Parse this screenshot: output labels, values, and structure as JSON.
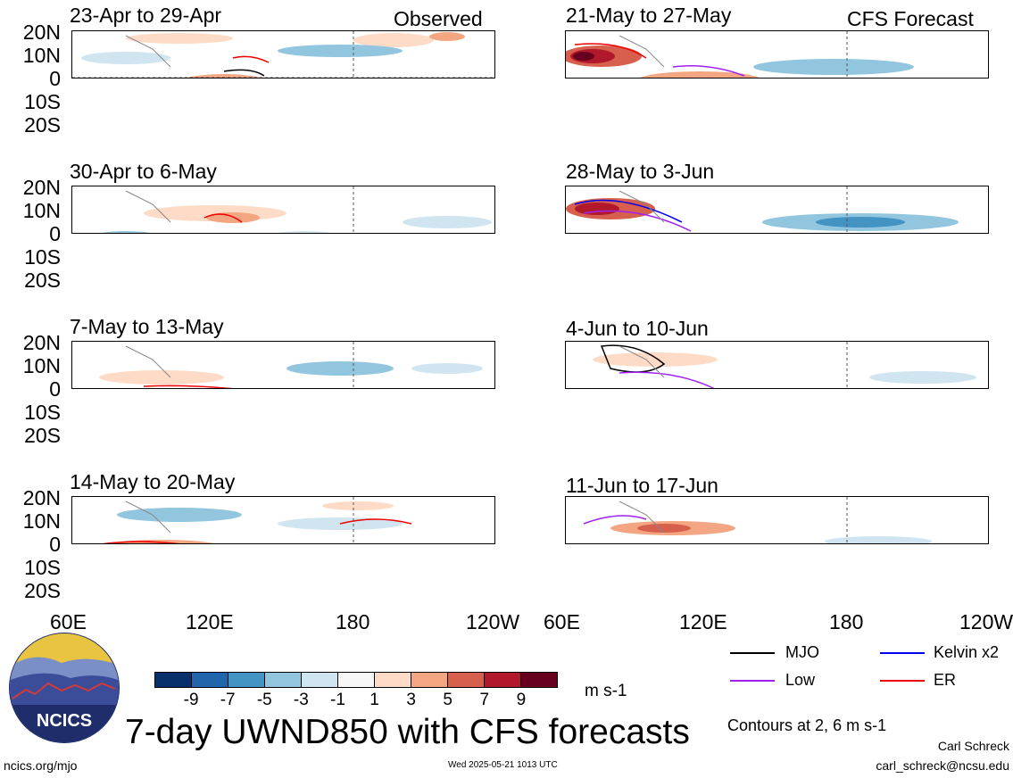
{
  "headers": {
    "observed": "Observed",
    "forecast": "CFS Forecast"
  },
  "panels": {
    "left": [
      {
        "title": "23-Apr to 29-Apr"
      },
      {
        "title": "30-Apr to 6-May"
      },
      {
        "title": "7-May to 13-May"
      },
      {
        "title": "14-May to 20-May"
      }
    ],
    "right": [
      {
        "title": "21-May to 27-May"
      },
      {
        "title": "28-May to 3-Jun"
      },
      {
        "title": "4-Jun to 10-Jun"
      },
      {
        "title": "11-Jun to 17-Jun"
      }
    ]
  },
  "lat_labels": [
    "20N",
    "10N",
    "0",
    "10S",
    "20S"
  ],
  "lon_labels": [
    "60E",
    "120E",
    "180",
    "120W"
  ],
  "colorbar": {
    "colors": [
      "#08306b",
      "#2166ac",
      "#4393c3",
      "#92c5de",
      "#d1e5f0",
      "#f7f7f7",
      "#fddbc7",
      "#f4a582",
      "#d6604d",
      "#b2182b",
      "#67001f"
    ],
    "labels": [
      "-9",
      "-7",
      "-5",
      "-3",
      "-1",
      "1",
      "3",
      "5",
      "7",
      "9"
    ],
    "units": "m s-1"
  },
  "contour_legend": [
    {
      "label": "MJO",
      "color": "#000000"
    },
    {
      "label": "Kelvin x2",
      "color": "#0000ee"
    },
    {
      "label": "Low",
      "color": "#a020f0"
    },
    {
      "label": "ER",
      "color": "#ee0000"
    }
  ],
  "contours_note": "Contours at 2, 6 m s-1",
  "main_title": "7-day UWND850 with CFS forecasts",
  "logo_text": "NCICS",
  "footer": {
    "url": "ncics.org/mjo",
    "timestamp": "Wed 2025-05-21 1013 UTC",
    "author": "Carl Schreck",
    "email": "carl_schreck@ncsu.edu"
  }
}
